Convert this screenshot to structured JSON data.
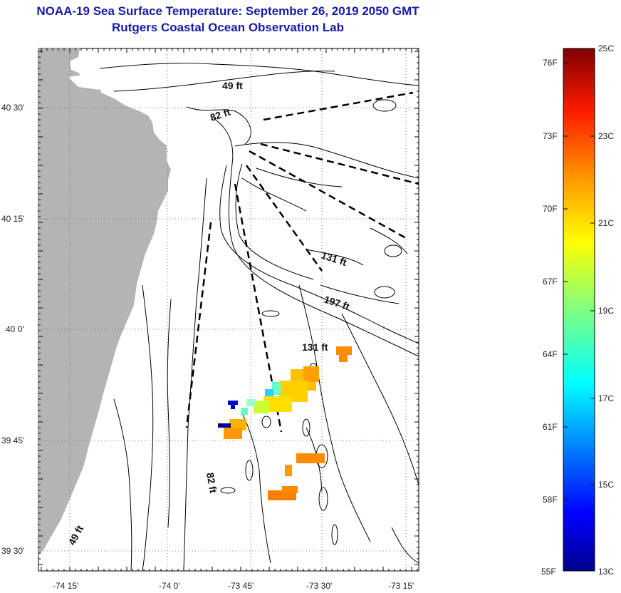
{
  "header": {
    "title": "NOAA-19 Sea Surface Temperature:  September 26, 2019 2050 GMT",
    "subtitle": "Rutgers Coastal Ocean Observation Lab"
  },
  "map": {
    "lat_ticks": [
      "40 30'",
      "40 15'",
      "40 0'",
      "39 45'",
      "39 30'"
    ],
    "lon_ticks": [
      "-74 15'",
      "-74 0'",
      "-73 45'",
      "-73 30'",
      "-73 15'"
    ],
    "depth_labels": [
      "49 ft",
      "82 ft",
      "131 ft",
      "197 ft",
      "131 ft",
      "82 ft",
      "49 ft"
    ],
    "land_color": "#b4b4b4",
    "grid": "dotted"
  },
  "colorbar": {
    "fahrenheit_labels": [
      "76F",
      "73F",
      "70F",
      "67F",
      "64F",
      "61F",
      "58F",
      "55F"
    ],
    "celsius_labels": [
      "25C",
      "23C",
      "21C",
      "19C",
      "17C",
      "15C",
      "13C"
    ],
    "range_c": [
      13,
      25
    ],
    "colormap": [
      "#00008f",
      "#0000ff",
      "#0080ff",
      "#00ffff",
      "#80ff80",
      "#ffff00",
      "#ff8000",
      "#ff0000",
      "#800000"
    ]
  }
}
